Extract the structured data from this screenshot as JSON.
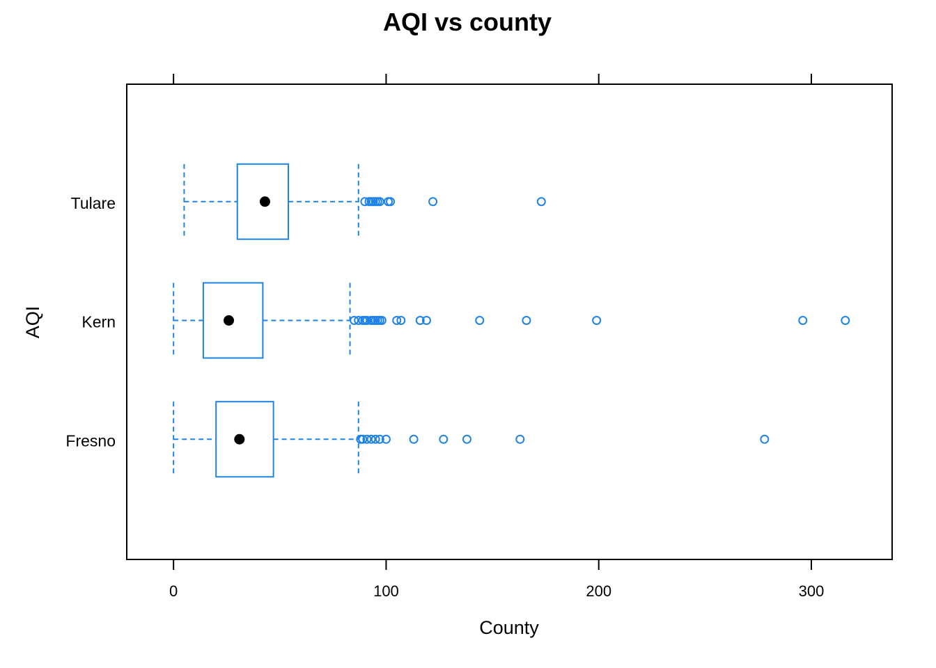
{
  "chart_data": {
    "type": "boxplot",
    "orientation": "horizontal",
    "title": "AQI vs county",
    "xlabel": "County",
    "ylabel": "AQI",
    "xlim": [
      -22,
      338
    ],
    "xticks": [
      0,
      100,
      200,
      300
    ],
    "xtick_labels": [
      "0",
      "100",
      "200",
      "300"
    ],
    "grid": false,
    "colors": {
      "box": "#1e82e6",
      "median": "#000000",
      "outlier": "#1e82e6"
    },
    "categories": [
      "Fresno",
      "Kern",
      "Tulare"
    ],
    "boxes": [
      {
        "category": "Fresno",
        "whisker_low": 0,
        "q1": 20,
        "median": 31,
        "q3": 47,
        "whisker_high": 87,
        "outliers": [
          88,
          89,
          91,
          93,
          95,
          97,
          100,
          113,
          127,
          138,
          163,
          278
        ]
      },
      {
        "category": "Kern",
        "whisker_low": 0,
        "q1": 14,
        "median": 26,
        "q3": 42,
        "whisker_high": 83,
        "outliers": [
          85,
          87,
          89,
          90,
          91,
          93,
          94,
          95,
          96,
          97,
          98,
          105,
          107,
          116,
          119,
          144,
          166,
          199,
          296,
          316
        ]
      },
      {
        "category": "Tulare",
        "whisker_low": 5,
        "q1": 30,
        "median": 43,
        "q3": 54,
        "whisker_high": 87,
        "outliers": [
          90,
          92,
          93,
          94,
          95,
          96,
          97,
          101,
          102,
          122,
          173
        ]
      }
    ]
  }
}
